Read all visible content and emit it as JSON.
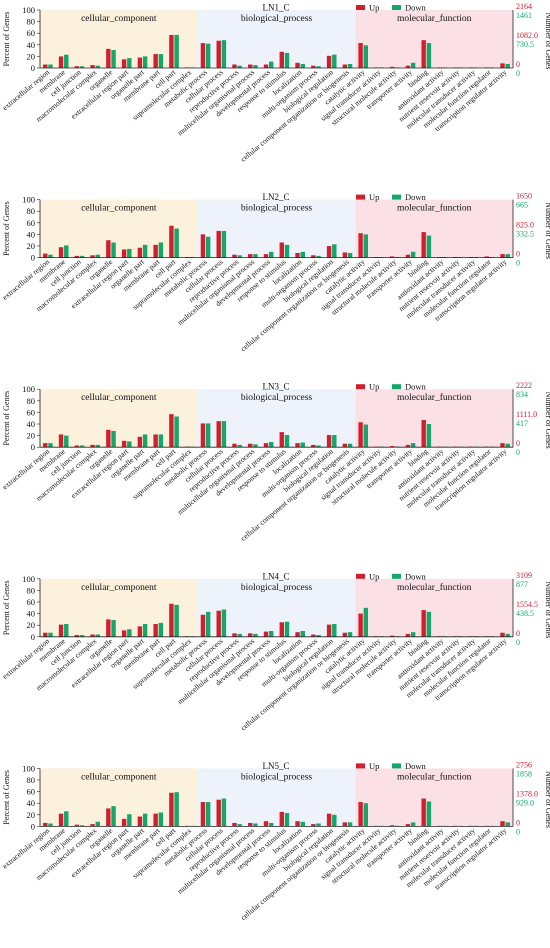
{
  "colors": {
    "up": "#d0202e",
    "down": "#13a86a",
    "cellular_bg": "#fbf1dc",
    "biological_bg": "#eef2fb",
    "molecular_bg": "#fbe1e6",
    "axis": "#222222",
    "right_up_text": "#d0202e",
    "right_down_text": "#13a86a"
  },
  "legend": {
    "up": "Up",
    "down": "Down"
  },
  "left_axis_label": "Percent of Genes",
  "right_axis_label": "Number of Genes",
  "categories": [
    "cellular_component",
    "biological_process",
    "molecular_function"
  ],
  "terms": [
    "extracellular region",
    "membrane",
    "cell junction",
    "macromolecular complex",
    "organelle",
    "extracellular region part",
    "organelle part",
    "membrane part",
    "cell part",
    "supramolecular complex",
    "metabolic process",
    "cellular process",
    "reproductive process",
    "multicellular organismal process",
    "developmental process",
    "response to stimulus",
    "localization",
    "multi-organism process",
    "biological regulation",
    "cellular component organization or biogenesis",
    "catalytic activity",
    "signal transducer activity",
    "structural molecule activity",
    "transporter activity",
    "binding",
    "antioxidant activity",
    "nutrient reservoir activity",
    "molecular transducer activity",
    "molecular function regulator",
    "transcription regulator activity"
  ],
  "chart_data": [
    {
      "type": "bar",
      "title": "LN1_C",
      "ylabel": "Percent of Genes",
      "ylim": [
        0,
        100
      ],
      "yticks": [
        0,
        20,
        40,
        60,
        80,
        100
      ],
      "right_ticks_up": [
        "2164",
        "1082.0",
        "0"
      ],
      "right_ticks_down": [
        "1461",
        "730.5",
        "0"
      ],
      "series": [
        {
          "name": "Up",
          "values": [
            6,
            20,
            3,
            5,
            33,
            15,
            18,
            24,
            57,
            1,
            43,
            47,
            6,
            6,
            6,
            28,
            9,
            4,
            21,
            6,
            43,
            1,
            2,
            4,
            48,
            1,
            1,
            1,
            1,
            8
          ]
        },
        {
          "name": "Down",
          "values": [
            6,
            23,
            3,
            4,
            31,
            17,
            20,
            24,
            57,
            1,
            42,
            48,
            4,
            5,
            11,
            26,
            7,
            3,
            23,
            7,
            39,
            1,
            1,
            9,
            43,
            1,
            1,
            1,
            1,
            7
          ]
        }
      ]
    },
    {
      "type": "bar",
      "title": "LN2_C",
      "ylabel": "Percent of Genes",
      "ylim": [
        0,
        100
      ],
      "yticks": [
        0,
        20,
        40,
        60,
        80,
        100
      ],
      "right_ticks_up": [
        "1650",
        "825.0",
        "0"
      ],
      "right_ticks_down": [
        "665",
        "332.5",
        "0"
      ],
      "series": [
        {
          "name": "Up",
          "values": [
            7,
            18,
            3,
            4,
            30,
            14,
            17,
            22,
            55,
            1,
            40,
            46,
            5,
            6,
            6,
            26,
            8,
            4,
            20,
            9,
            42,
            1,
            2,
            5,
            44,
            1,
            1,
            1,
            2,
            6
          ]
        },
        {
          "name": "Down",
          "values": [
            5,
            21,
            3,
            5,
            26,
            15,
            22,
            26,
            50,
            1,
            36,
            46,
            4,
            6,
            10,
            22,
            10,
            3,
            23,
            8,
            40,
            1,
            1,
            10,
            38,
            1,
            1,
            1,
            1,
            6
          ]
        }
      ]
    },
    {
      "type": "bar",
      "title": "LN3_C",
      "ylabel": "Percent of Genes",
      "ylim": [
        0,
        100
      ],
      "yticks": [
        0,
        20,
        40,
        60,
        80,
        100
      ],
      "right_ticks_up": [
        "2222",
        "1111.0",
        "0"
      ],
      "right_ticks_down": [
        "834",
        "417",
        "0"
      ],
      "series": [
        {
          "name": "Up",
          "values": [
            7,
            22,
            3,
            4,
            30,
            11,
            18,
            22,
            57,
            1,
            41,
            45,
            6,
            6,
            7,
            26,
            7,
            4,
            21,
            6,
            43,
            1,
            2,
            4,
            47,
            1,
            1,
            1,
            1,
            7
          ]
        },
        {
          "name": "Down",
          "values": [
            7,
            20,
            3,
            4,
            28,
            10,
            22,
            22,
            53,
            1,
            41,
            45,
            4,
            5,
            9,
            21,
            8,
            3,
            21,
            6,
            39,
            1,
            1,
            7,
            40,
            1,
            1,
            1,
            1,
            6
          ]
        }
      ]
    },
    {
      "type": "bar",
      "title": "LN4_C",
      "ylabel": "Percent of Genes",
      "ylim": [
        0,
        100
      ],
      "yticks": [
        0,
        20,
        40,
        60,
        80,
        100
      ],
      "right_ticks_up": [
        "3109",
        "1554.5",
        "0"
      ],
      "right_ticks_down": [
        "877",
        "438.5",
        "0"
      ],
      "series": [
        {
          "name": "Up",
          "values": [
            7,
            21,
            3,
            4,
            30,
            11,
            18,
            22,
            57,
            1,
            38,
            45,
            6,
            6,
            9,
            25,
            8,
            4,
            21,
            7,
            40,
            1,
            2,
            5,
            46,
            1,
            1,
            1,
            1,
            7
          ]
        },
        {
          "name": "Down",
          "values": [
            7,
            22,
            3,
            4,
            29,
            13,
            22,
            24,
            55,
            1,
            43,
            47,
            5,
            5,
            10,
            26,
            10,
            3,
            22,
            8,
            50,
            1,
            1,
            8,
            43,
            1,
            1,
            1,
            1,
            5
          ]
        }
      ]
    },
    {
      "type": "bar",
      "title": "LN5_C",
      "ylabel": "Percent of Genes",
      "ylim": [
        0,
        100
      ],
      "yticks": [
        0,
        20,
        40,
        60,
        80,
        100
      ],
      "right_ticks_up": [
        "2756",
        "1378.0",
        "0"
      ],
      "right_ticks_down": [
        "1858",
        "929.0",
        "0"
      ],
      "series": [
        {
          "name": "Up",
          "values": [
            6,
            22,
            3,
            4,
            31,
            13,
            17,
            22,
            58,
            1,
            42,
            46,
            6,
            6,
            9,
            25,
            9,
            4,
            22,
            7,
            42,
            1,
            2,
            4,
            48,
            1,
            1,
            1,
            1,
            9
          ]
        },
        {
          "name": "Down",
          "values": [
            5,
            26,
            2,
            8,
            35,
            21,
            22,
            24,
            59,
            1,
            42,
            48,
            4,
            5,
            6,
            23,
            8,
            5,
            20,
            7,
            40,
            1,
            1,
            7,
            43,
            1,
            1,
            1,
            1,
            7
          ]
        }
      ]
    }
  ]
}
